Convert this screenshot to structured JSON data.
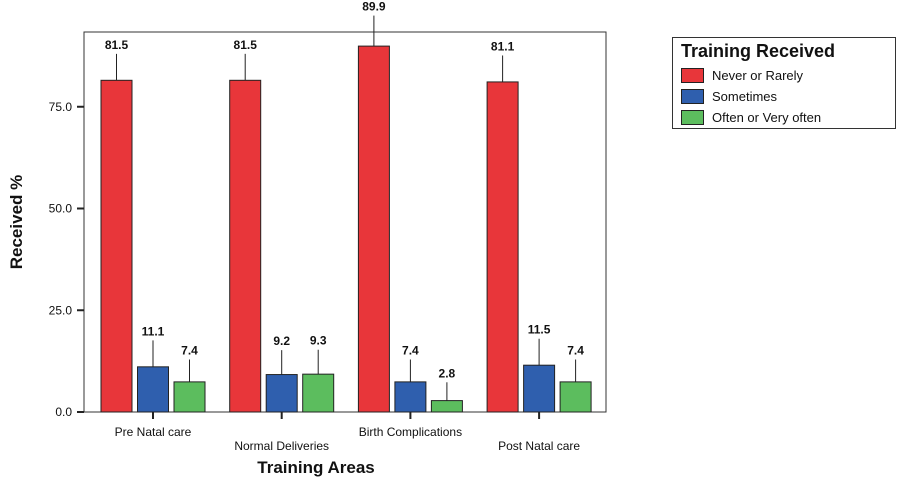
{
  "chart_data": {
    "type": "bar",
    "xlabel": "Training Areas",
    "ylabel": "Received %",
    "ylim": [
      0,
      100
    ],
    "yticks": [
      "0.0",
      "25.0",
      "50.0",
      "75.0"
    ],
    "grid": false,
    "legend_title": "Training Received",
    "legend_position": "top-right",
    "categories": [
      "Pre Natal care",
      "Normal Deliveries",
      "Birth Complications",
      "Post Natal care"
    ],
    "series": [
      {
        "name": "Never or Rarely",
        "color": "#e8363a",
        "values": [
          81.5,
          81.5,
          89.9,
          81.1
        ],
        "labels": [
          "81.5",
          "81.5",
          "89.9",
          "81.1"
        ],
        "error": [
          6.5,
          6.5,
          7.5,
          6.5
        ]
      },
      {
        "name": "Sometimes",
        "color": "#2f5fae",
        "values": [
          11.1,
          9.2,
          7.4,
          11.5
        ],
        "labels": [
          "11.1",
          "9.2",
          "7.4",
          "11.5"
        ],
        "error": [
          6.5,
          6.0,
          5.5,
          6.5
        ]
      },
      {
        "name": "Often or Very often",
        "color": "#5cbd5e",
        "values": [
          7.4,
          9.3,
          2.8,
          7.4
        ],
        "labels": [
          "7.4",
          "9.3",
          "2.8",
          "7.4"
        ],
        "error": [
          5.5,
          6.0,
          4.5,
          5.5
        ]
      }
    ]
  }
}
